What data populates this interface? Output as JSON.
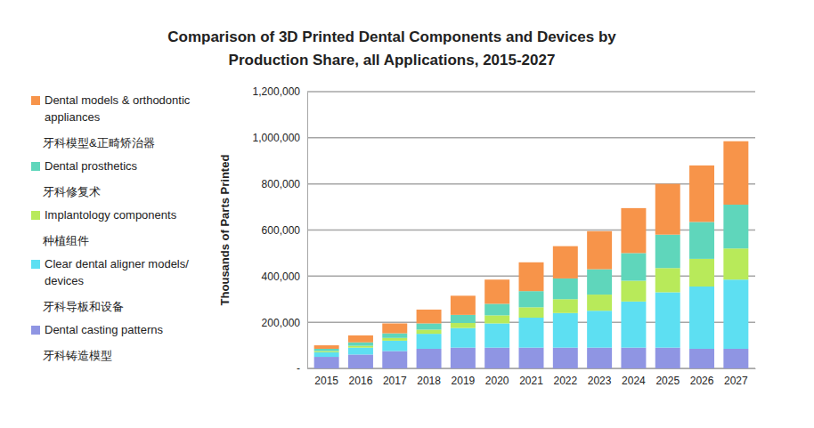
{
  "chart_data": {
    "type": "bar",
    "stacked": true,
    "title": "Comparison of 3D Printed Dental Components and Devices by Production Share, all Applications, 2015-2027",
    "y_label": "Thousands of Parts Printed",
    "categories": [
      "2015",
      "2016",
      "2017",
      "2018",
      "2019",
      "2020",
      "2021",
      "2022",
      "2023",
      "2024",
      "2025",
      "2026",
      "2027"
    ],
    "ylim": [
      0,
      1200000
    ],
    "yticks": [
      {
        "value": 0,
        "label": "-"
      },
      {
        "value": 200000,
        "label": "200,000"
      },
      {
        "value": 400000,
        "label": "400,000"
      },
      {
        "value": 600000,
        "label": "600,000"
      },
      {
        "value": 800000,
        "label": "800,000"
      },
      {
        "value": 1000000,
        "label": "1,000,000"
      },
      {
        "value": 1200000,
        "label": "1,200,000"
      }
    ],
    "grid": true,
    "legend": "left",
    "series": [
      {
        "name": "Dental casting patterns",
        "translation": "牙科铸造模型",
        "color": "#8f95e3",
        "values": [
          50000,
          60000,
          75000,
          85000,
          90000,
          90000,
          90000,
          90000,
          90000,
          90000,
          90000,
          85000,
          85000
        ]
      },
      {
        "name": "Clear dental aligner models/ devices",
        "translation": "牙科导板和设备",
        "color": "#5ddff2",
        "values": [
          20000,
          30000,
          45000,
          65000,
          85000,
          105000,
          130000,
          150000,
          160000,
          200000,
          240000,
          270000,
          300000
        ]
      },
      {
        "name": "Implantology components",
        "translation": "种植组件",
        "color": "#b8ea5a",
        "values": [
          5000,
          8000,
          12000,
          18000,
          22000,
          35000,
          45000,
          60000,
          70000,
          90000,
          105000,
          120000,
          135000
        ]
      },
      {
        "name": "Dental prosthetics",
        "translation": "牙科修复术",
        "color": "#5fd6bb",
        "values": [
          10000,
          15000,
          20000,
          27000,
          35000,
          50000,
          70000,
          90000,
          110000,
          120000,
          145000,
          160000,
          190000
        ]
      },
      {
        "name": "Dental models & orthodontic appliances",
        "translation": "牙科模型&正畸矫治器",
        "color": "#f7944a",
        "values": [
          15000,
          30000,
          43000,
          60000,
          83000,
          105000,
          125000,
          140000,
          165000,
          195000,
          220000,
          245000,
          275000
        ]
      }
    ]
  }
}
